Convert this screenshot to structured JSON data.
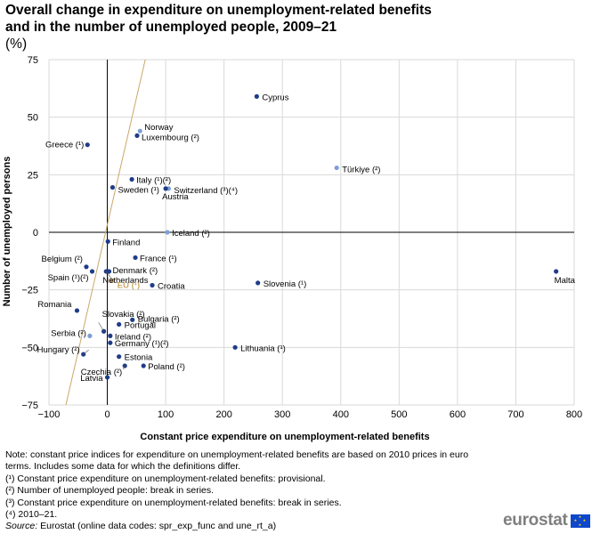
{
  "title": {
    "line1": "Overall change in expenditure on unemployment-related benefits",
    "line2": "and in the number of unemployed people, 2009–21",
    "unit": "(%)"
  },
  "chart_data": {
    "type": "scatter",
    "xlabel": "Constant price expenditure on unemployment-related  benefits",
    "ylabel": "Number of unemployed persons",
    "xlim": [
      -100,
      800
    ],
    "ylim": [
      -75,
      75
    ],
    "xticks": [
      -100,
      0,
      100,
      200,
      300,
      400,
      500,
      600,
      700,
      800
    ],
    "yticks": [
      -75,
      -50,
      -25,
      0,
      25,
      50,
      75
    ],
    "xtick_labels": [
      "−100",
      "0",
      "100",
      "200",
      "300",
      "400",
      "500",
      "600",
      "700",
      "800"
    ],
    "ytick_labels": [
      "−75",
      "−50",
      "−25",
      "0",
      "25",
      "50",
      "75"
    ],
    "grid": true,
    "reference_line": {
      "x1": -71,
      "y1": -75,
      "x2": 65,
      "y2": 75,
      "color": "#c8a96a"
    },
    "colors": {
      "member": "#1f3c88",
      "non_member": "#7f9fd6",
      "eu": "#c8a96a",
      "grid": "#d9d9d9"
    },
    "points": [
      {
        "label": "Cyprus",
        "x": 256,
        "y": 59,
        "group": "member"
      },
      {
        "label": "Norway",
        "x": 56,
        "y": 44,
        "group": "non_member"
      },
      {
        "label": "Luxembourg (²)",
        "x": 51,
        "y": 42,
        "group": "member"
      },
      {
        "label": "Greece (¹)",
        "x": -34,
        "y": 38,
        "group": "member"
      },
      {
        "label": "Türkiye (²)",
        "x": 393,
        "y": 28,
        "group": "non_member"
      },
      {
        "label": "Italy (¹)(²)",
        "x": 42,
        "y": 23,
        "group": "member"
      },
      {
        "label": "Switzerland (³)(⁴)",
        "x": 105,
        "y": 19,
        "group": "non_member"
      },
      {
        "label": "Sweden (¹)",
        "x": 9,
        "y": 19.5,
        "group": "member"
      },
      {
        "label": "Austria",
        "x": 100,
        "y": 19,
        "group": "member"
      },
      {
        "label": "Iceland (²)",
        "x": 103,
        "y": 0,
        "group": "non_member"
      },
      {
        "label": "Finland",
        "x": 1,
        "y": -4,
        "group": "member"
      },
      {
        "label": "France (¹)",
        "x": 48,
        "y": -11,
        "group": "member"
      },
      {
        "label": "Belgium (²)",
        "x": -36,
        "y": -15,
        "group": "member"
      },
      {
        "label": "Spain (¹)(²)",
        "x": -26,
        "y": -17,
        "group": "member"
      },
      {
        "label": "Denmark (²)",
        "x": 3,
        "y": -17,
        "group": "member"
      },
      {
        "label": "Netherlands",
        "x": -2,
        "y": -17,
        "group": "member"
      },
      {
        "label": "EU (¹)",
        "x": 8,
        "y": -21,
        "group": "eu"
      },
      {
        "label": "Croatia",
        "x": 77,
        "y": -23,
        "group": "member"
      },
      {
        "label": "Slovenia (¹)",
        "x": 258,
        "y": -22,
        "group": "member"
      },
      {
        "label": "Malta",
        "x": 769,
        "y": -17,
        "group": "member"
      },
      {
        "label": "Romania",
        "x": -52,
        "y": -34,
        "group": "member"
      },
      {
        "label": "Slovakia (²)",
        "x": -6,
        "y": -43,
        "group": "member"
      },
      {
        "label": "Bulgaria (²)",
        "x": 43,
        "y": -38,
        "group": "member"
      },
      {
        "label": "Portugal",
        "x": 20,
        "y": -40,
        "group": "member"
      },
      {
        "label": "Serbia (²)",
        "x": -30,
        "y": -45,
        "group": "non_member"
      },
      {
        "label": "Ireland (²)",
        "x": 5,
        "y": -45,
        "group": "member"
      },
      {
        "label": "Germany (¹)(²)",
        "x": 5,
        "y": -48,
        "group": "member"
      },
      {
        "label": "Hungary (²)",
        "x": -41,
        "y": -53,
        "group": "member"
      },
      {
        "label": "Lithuania (¹)",
        "x": 219,
        "y": -50,
        "group": "member"
      },
      {
        "label": "Estonia",
        "x": 20,
        "y": -54,
        "group": "member"
      },
      {
        "label": "Czechia (²)",
        "x": 30,
        "y": -58,
        "group": "member"
      },
      {
        "label": "Poland (²)",
        "x": 62,
        "y": -58,
        "group": "member"
      },
      {
        "label": "Latvia",
        "x": 0,
        "y": -63,
        "group": "member"
      }
    ]
  },
  "notes": {
    "note_line1": "Note: constant price indices for expenditure on unemployment-related  benefits are based on 2010 prices in euro",
    "note_line2": "terms. Includes some data for which the definitions differ.",
    "fn1": "(¹) Constant price expenditure on unemployment-related  benefits: provisional.",
    "fn2": "(²) Number of unemployed  people: break in series.",
    "fn3": "(³) Constant price expenditure on unemployment-related  benefits: break in series.",
    "fn4": "(⁴) 2010–21.",
    "source_label": "Source:",
    "source_text": " Eurostat (online data codes: spr_exp_func and une_rt_a)"
  },
  "logo": {
    "text": "eurostat"
  }
}
